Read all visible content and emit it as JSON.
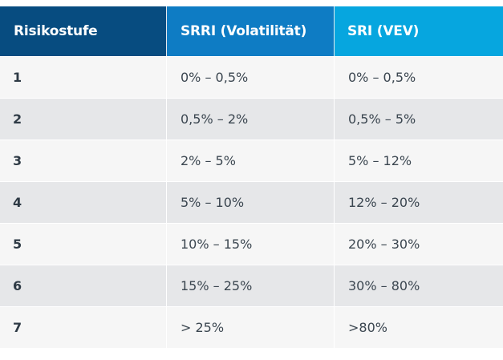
{
  "table": {
    "headers": [
      "Risikostufe",
      "SRRI (Volatilität)",
      "SRI (VEV)"
    ],
    "rows": [
      {
        "level": "1",
        "srri": "0% – 0,5%",
        "sri": "0% – 0,5%"
      },
      {
        "level": "2",
        "srri": "0,5% – 2%",
        "sri": "0,5% – 5%"
      },
      {
        "level": "3",
        "srri": "2% – 5%",
        "sri": "5% – 12%"
      },
      {
        "level": "4",
        "srri": "5% – 10%",
        "sri": "12% – 20%"
      },
      {
        "level": "5",
        "srri": "10% – 15%",
        "sri": "20% – 30%"
      },
      {
        "level": "6",
        "srri": "15% – 25%",
        "sri": "30% – 80%"
      },
      {
        "level": "7",
        "srri": "> 25%",
        "sri": ">80%"
      }
    ],
    "colors": {
      "header_col1": "#074c80",
      "header_col2": "#0e7cc4",
      "header_col3": "#06a6df",
      "row_light": "#f6f6f6",
      "row_dark": "#e6e7e9"
    }
  }
}
